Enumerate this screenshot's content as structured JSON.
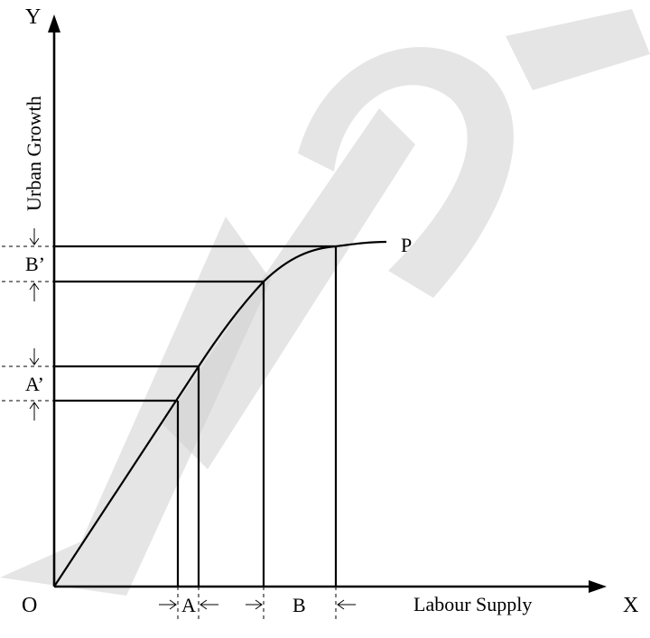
{
  "labels": {
    "y_axis_letter": "Y",
    "x_axis_letter": "X",
    "origin": "O",
    "y_axis_title": "Urban Growth",
    "x_axis_title": "Labour Supply",
    "curve_label": "P",
    "interval_a": "A",
    "interval_b": "B",
    "interval_a_prime": "A’",
    "interval_b_prime": "B’"
  }
}
